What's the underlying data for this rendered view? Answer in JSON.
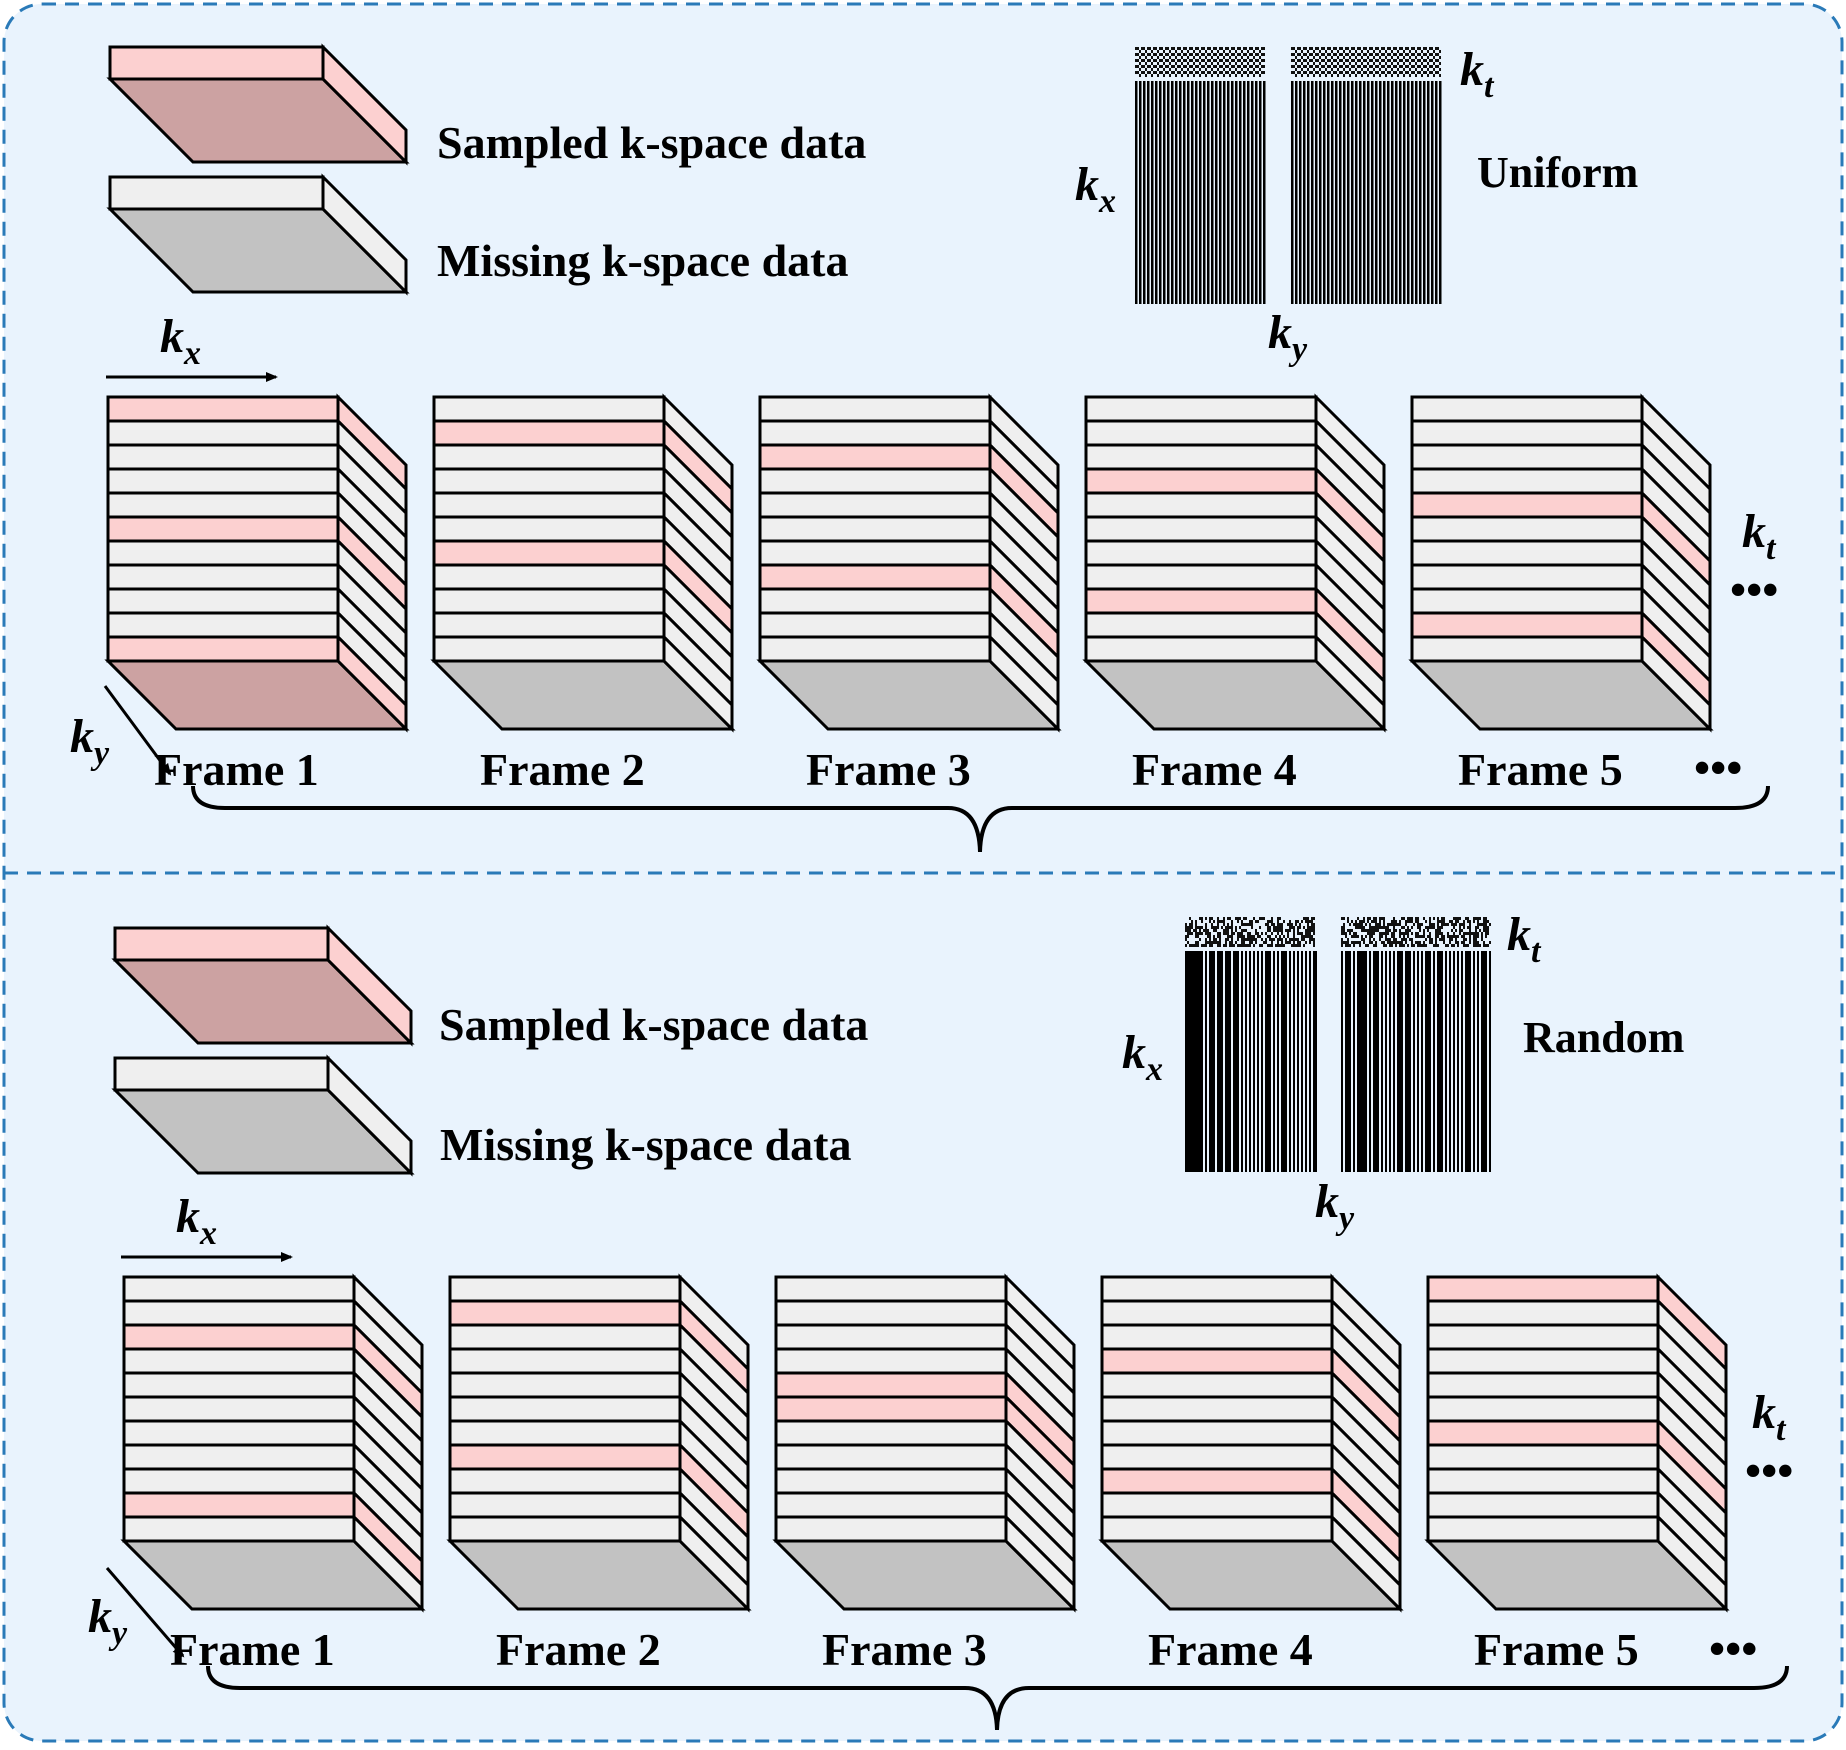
{
  "colors": {
    "panel_bg": "#e9f3fd",
    "panel_border": "#2a7ab8",
    "sampled_face": "#fcd0d0",
    "sampled_base": "#cca2a2",
    "missing_face": "#efefef",
    "missing_base": "#c2c2c2"
  },
  "panels": [
    {
      "pattern_name": "Uniform",
      "legend": {
        "sampled": "Sampled k-space data",
        "missing": "Missing k-space data"
      },
      "axes": {
        "k": "k",
        "sub_x": "x",
        "sub_y": "y",
        "sub_t": "t"
      },
      "ellipsis": "•••",
      "frames": [
        {
          "label": "Frame 1",
          "sampled_rows": [
            0,
            5,
            10
          ],
          "sampled_base": true
        },
        {
          "label": "Frame 2",
          "sampled_rows": [
            1,
            6
          ],
          "sampled_base": false
        },
        {
          "label": "Frame 3",
          "sampled_rows": [
            2,
            7
          ],
          "sampled_base": false
        },
        {
          "label": "Frame 4",
          "sampled_rows": [
            3,
            8
          ],
          "sampled_base": false
        },
        {
          "label": "Frame 5",
          "sampled_rows": [
            4,
            9
          ],
          "sampled_base": false
        }
      ]
    },
    {
      "pattern_name": "Random",
      "legend": {
        "sampled": "Sampled k-space data",
        "missing": "Missing k-space data"
      },
      "axes": {
        "k": "k",
        "sub_x": "x",
        "sub_y": "y",
        "sub_t": "t"
      },
      "ellipsis": "•••",
      "frames": [
        {
          "label": "Frame 1",
          "sampled_rows": [
            2,
            9
          ],
          "sampled_base": false
        },
        {
          "label": "Frame 2",
          "sampled_rows": [
            1,
            7
          ],
          "sampled_base": false
        },
        {
          "label": "Frame 3",
          "sampled_rows": [
            4,
            5
          ],
          "sampled_base": false
        },
        {
          "label": "Frame 4",
          "sampled_rows": [
            3,
            8
          ],
          "sampled_base": false
        },
        {
          "label": "Frame 5",
          "sampled_rows": [
            0,
            6
          ],
          "sampled_base": false
        }
      ]
    }
  ]
}
